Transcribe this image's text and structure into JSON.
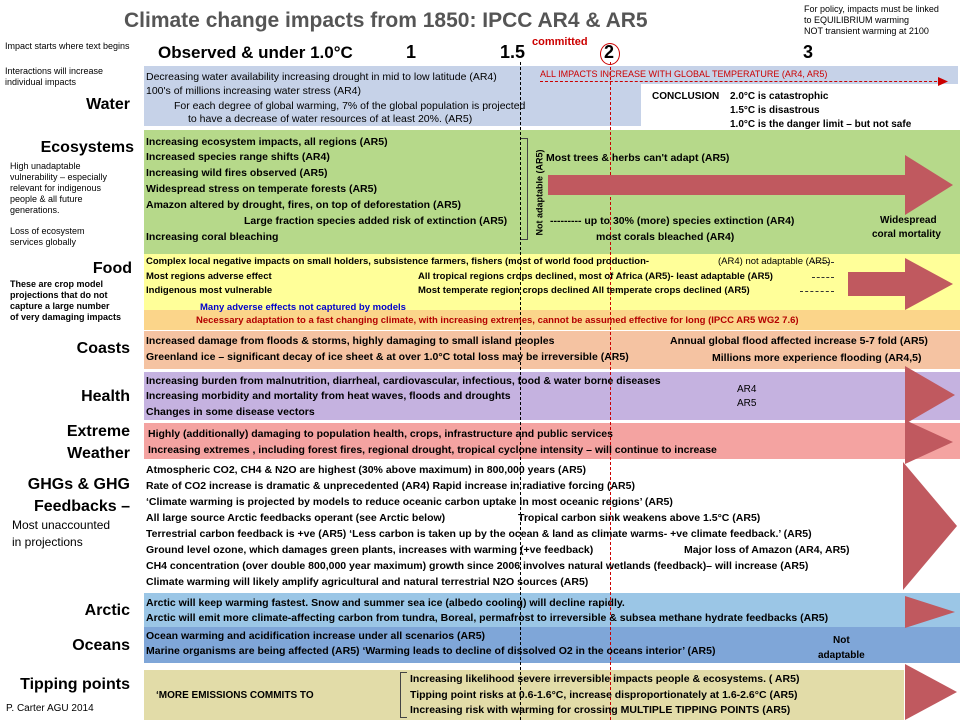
{
  "title": "Climate  change impacts from 1850: IPCC AR4 & AR5",
  "policy_note": [
    "For policy, impacts must be linked",
    "to EQUILIBRIUM warming",
    "NOT transient warming at 2100"
  ],
  "left_notes": {
    "impact_starts": "Impact starts where text begins",
    "interactions": [
      "Interactions will increase",
      "individual impacts"
    ],
    "high_unadaptable": [
      "High unadaptable",
      "vulnerability – especially",
      "relevant for indigenous",
      "people & all future",
      "generations."
    ],
    "loss_ecosystem": [
      "Loss of ecosystem",
      "services globally"
    ],
    "crop_models": [
      "These are crop model",
      "projections that do not",
      "capture a large number",
      "of very damaging impacts"
    ],
    "credit": "P. Carter AGU 2014"
  },
  "header": {
    "observed": "Observed & under 1.0°C",
    "t1": "1",
    "t15": "1.5",
    "committed": "committed",
    "t2": "2",
    "t3": "3"
  },
  "categories": {
    "water": "Water",
    "ecosystems": "Ecosystems",
    "food": "Food",
    "coasts": "Coasts",
    "health": "Health",
    "extreme1": "Extreme",
    "extreme2": "Weather",
    "ghg1": "GHGs & GHG",
    "ghg2": "Feedbacks –",
    "ghg_note1": "Most unaccounted",
    "ghg_note2": "in projections",
    "arctic": "Arctic",
    "oceans": "Oceans",
    "tipping": "Tipping points"
  },
  "water": {
    "l1": "Decreasing water availability increasing drought in mid to low latitude (AR4)",
    "all_impacts": "ALL IMPACTS INCREASE WITH GLOBAL TEMPERATURE (AR4, AR5)",
    "l2": "100's of millions increasing water stress (AR4)",
    "l3": "For each degree of global warming,  7% of the global population  is projected",
    "l4": "to  have a decrease of water resources of at least 20%. (AR5)",
    "conclusion_label": "CONCLUSION",
    "conclusion": [
      "2.0°C is catastrophic",
      "1.5°C is disastrous",
      "1.0°C is the danger limit –  but not safe"
    ]
  },
  "eco": {
    "l1": "Increasing  ecosystem  impacts, all regions (AR5)",
    "l2": "Increased species range shifts (AR4)",
    "l3": "Increasing wild fires observed (AR5)",
    "l4": "Widespread stress on temperate forests (AR5)",
    "l5": "Amazon altered by drought, fires, on top  of deforestation (AR5)",
    "l6": "Large fraction species added risk of extinction (AR5)",
    "l6b": "---------  up to 30% (more) species extinction  (AR4)",
    "l7": "Increasing coral bleaching",
    "l7b": "most corals  bleached  (AR4)",
    "trees": "Most trees & herbs can't adapt (AR5)",
    "not_adaptable": "Not adaptable  (AR5)",
    "widespread1": "Widespread",
    "widespread2": "coral mortality"
  },
  "food": {
    "l1": "Complex local negative impacts on small holders,  subsistence farmers, fishers (most of world food production-",
    "l1b": "(AR4) not adaptable  (AR5)",
    "l2": "Most regions adverse effect",
    "l2b": "All tropical regions crops declined, most of Africa (AR5)- least adaptable (AR5)",
    "l3": "Indigenous most  vulnerable",
    "l3b": "Most temperate  region crops declined  All temperate crops  declined   (AR5)",
    "many": "Many adverse effects not captured  by models",
    "necessary": "Necessary adaptation  to a fast changing climate, with increasing extremes, cannot be assumed  effective for long  (IPCC AR5 WG2  7.6)"
  },
  "coasts": {
    "l1": "Increased damage from floods & storms, highly damaging to small island peoples",
    "l1b": "Annual global flood affected increase 5-7 fold  (AR5)",
    "l2": "Greenland ice – significant  decay of ice sheet & at over 1.0°C total loss may be irreversible (AR5)",
    "l2b": "Millions  more experience flooding   (AR4,5)"
  },
  "health": {
    "l1": "Increasing burden from malnutrition, diarrheal, cardiovascular,  infectious, food & water  borne diseases",
    "l2": "Increasing morbidity and mortality from heat waves, floods and droughts",
    "l3": "Changes in some disease vectors",
    "ar4": "AR4",
    "ar5": "AR5"
  },
  "extreme": {
    "l1": "Highly  (additionally) damaging to population health, crops, infrastructure and public services",
    "l2": "Increasing extremes , including  forest fires,  regional drought, tropical cyclone intensity – will continue to increase"
  },
  "ghg": {
    "l1": "Atmospheric CO2, CH4 & N2O are highest (30% above maximum) in 800,000 years (AR5)",
    "l2": "Rate of CO2 increase is dramatic & unprecedented  (AR4)  Rapid increase in radiative forcing (AR5)",
    "l3": "‘Climate warming is projected by models to reduce oceanic carbon uptake in most oceanic regions’ (AR5)",
    "l4": "All large source Arctic feedbacks operant  (see Arctic below)",
    "l4b": "Tropical carbon sink weakens above 1.5°C (AR5)",
    "l5": "Terrestrial carbon feedback is +ve  (AR5)  ‘Less carbon is taken up by the ocean & land as climate warms- +ve climate feedback.’  (AR5)",
    "l6": "Ground level ozone, which damages green plants, increases with warming (+ve feedback)",
    "l6b": "Major  loss  of Amazon   (AR4, AR5)",
    "l7": "CH4 concentration (over double 800,000 year maximum) growth since 2006 involves natural wetlands  (feedback)–  will increase  (AR5)",
    "l8": "Climate warming will likely amplify agricultural and natural terrestrial N2O sources (AR5)"
  },
  "arctic": {
    "l1": "Arctic will keep warming fastest. Snow and summer sea ice (albedo cooling)  will decline rapidly.",
    "l2": "Arctic will emit more climate-affecting  carbon from tundra, Boreal, permafrost to irreversible & subsea methane hydrate feedbacks (AR5)"
  },
  "oceans": {
    "l1": "Ocean warming and acidification  increase under all scenarios  (AR5)",
    "l2": "Marine organisms are being affected   (AR5)   ‘Warming leads to decline of dissolved O2 in the oceans interior’  (AR5)",
    "not1": "Not",
    "not2": "adaptable"
  },
  "tipping": {
    "commits": "‘MORE EMISSIONS  COMMITS TO",
    "l1": "Increasing likelihood  severe irreversible impacts  people & ecosystems. ( AR5)",
    "l2": "Tipping point risks at 0.6-1.6°C, increase disproportionately at 1.6-2.6°C (AR5)",
    "l3": "Increasing risk with warming for crossing  MULTIPLE TIPPING  POINTS   (AR5)"
  },
  "colors": {
    "water_band": "#c6d2e8",
    "eco_band": "#b6d98a",
    "food_band": "#ffff99",
    "food_adapt_band": "#fbd58a",
    "coast_band": "#f5c3a2",
    "health_band": "#c5b2e0",
    "extreme_band": "#f4a3a1",
    "arctic_band": "#9bc6e6",
    "oceans_band": "#7fa6d8",
    "tipping_band": "#e2dca8",
    "arrow": "#c0595f"
  }
}
